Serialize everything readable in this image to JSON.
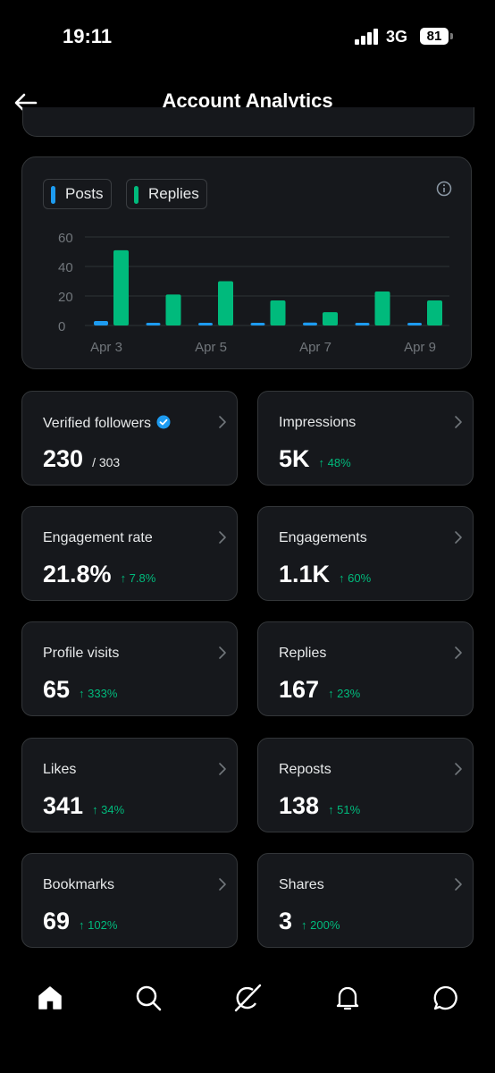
{
  "status_bar": {
    "time": "19:11",
    "network": "3G",
    "battery": "81"
  },
  "header": {
    "title": "Account Analytics",
    "back_icon": "back-arrow-icon"
  },
  "legend": [
    {
      "label": "Posts",
      "color": "#1d9bf0"
    },
    {
      "label": "Replies",
      "color": "#00ba7c"
    }
  ],
  "chart_data": {
    "type": "bar",
    "categories": [
      "Apr 3",
      "Apr 4",
      "Apr 5",
      "Apr 6",
      "Apr 7",
      "Apr 8",
      "Apr 9"
    ],
    "x_tick_labels": [
      "Apr 3",
      "Apr 5",
      "Apr 7",
      "Apr 9"
    ],
    "series": [
      {
        "name": "Posts",
        "color": "#1d9bf0",
        "values": [
          3,
          1,
          0,
          1,
          2,
          1,
          1
        ]
      },
      {
        "name": "Replies",
        "color": "#00ba7c",
        "values": [
          51,
          21,
          30,
          17,
          9,
          23,
          17
        ]
      }
    ],
    "y_ticks": [
      0,
      20,
      40,
      60
    ],
    "ylim": [
      0,
      60
    ],
    "grid": true,
    "title": "",
    "xlabel": "",
    "ylabel": ""
  },
  "metrics": [
    {
      "label": "Verified followers",
      "value": "230",
      "sub": "/ 303",
      "verified": true
    },
    {
      "label": "Impressions",
      "value": "5K",
      "change": "↑ 48%"
    },
    {
      "label": "Engagement rate",
      "value": "21.8%",
      "change": "↑ 7.8%"
    },
    {
      "label": "Engagements",
      "value": "1.1K",
      "change": "↑ 60%"
    },
    {
      "label": "Profile visits",
      "value": "65",
      "change": "↑ 333%"
    },
    {
      "label": "Replies",
      "value": "167",
      "change": "↑ 23%"
    },
    {
      "label": "Likes",
      "value": "341",
      "change": "↑ 34%"
    },
    {
      "label": "Reposts",
      "value": "138",
      "change": "↑ 51%"
    },
    {
      "label": "Bookmarks",
      "value": "69",
      "change": "↑ 102%"
    },
    {
      "label": "Shares",
      "value": "3",
      "change": "↑ 200%"
    }
  ],
  "bottom_nav": [
    "home-icon",
    "search-icon",
    "grok-icon",
    "notifications-icon",
    "messages-icon"
  ]
}
